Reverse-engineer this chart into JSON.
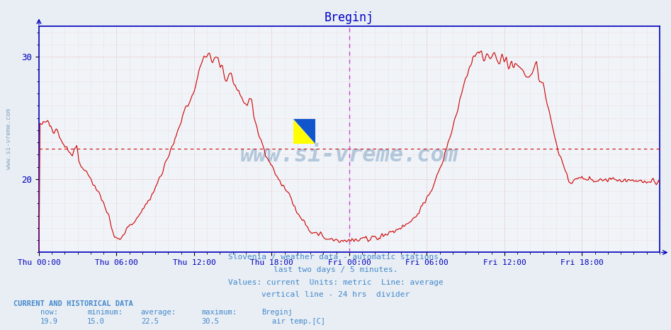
{
  "title": "Breginj",
  "title_color": "#0000cc",
  "title_fontsize": 12,
  "bg_color": "#e8eef4",
  "plot_bg_color": "#f0f4f8",
  "axis_color": "#0000bb",
  "grid_color": "#e09090",
  "grid_alpha": 0.7,
  "line_color": "#cc0000",
  "avg_line_color": "#cc0000",
  "divider_color": "#cc44cc",
  "ylim": [
    14.0,
    32.5
  ],
  "yticks": [
    20,
    30
  ],
  "xlabel_color": "#0000bb",
  "watermark_text": "www.si-vreme.com",
  "watermark_color": "#4477aa",
  "watermark_alpha": 0.35,
  "info_text1": "Slovenia / weather data - automatic stations.",
  "info_text2": "last two days / 5 minutes.",
  "info_text3": "Values: current  Units: metric  Line: average",
  "info_text4": "vertical line - 24 hrs  divider",
  "info_color": "#4488cc",
  "bottom_label": "CURRENT AND HISTORICAL DATA",
  "bottom_now": "19.9",
  "bottom_min": "15.0",
  "bottom_avg": "22.5",
  "bottom_max": "30.5",
  "bottom_station": "Breginj",
  "bottom_param": "air temp.[C]",
  "legend_color": "#cc0000",
  "xtick_labels": [
    "Thu 00:00",
    "Thu 06:00",
    "Thu 12:00",
    "Thu 18:00",
    "Fri 00:00",
    "Fri 06:00",
    "Fri 12:00",
    "Fri 18:00"
  ],
  "average_value": 22.5,
  "n_points": 576
}
